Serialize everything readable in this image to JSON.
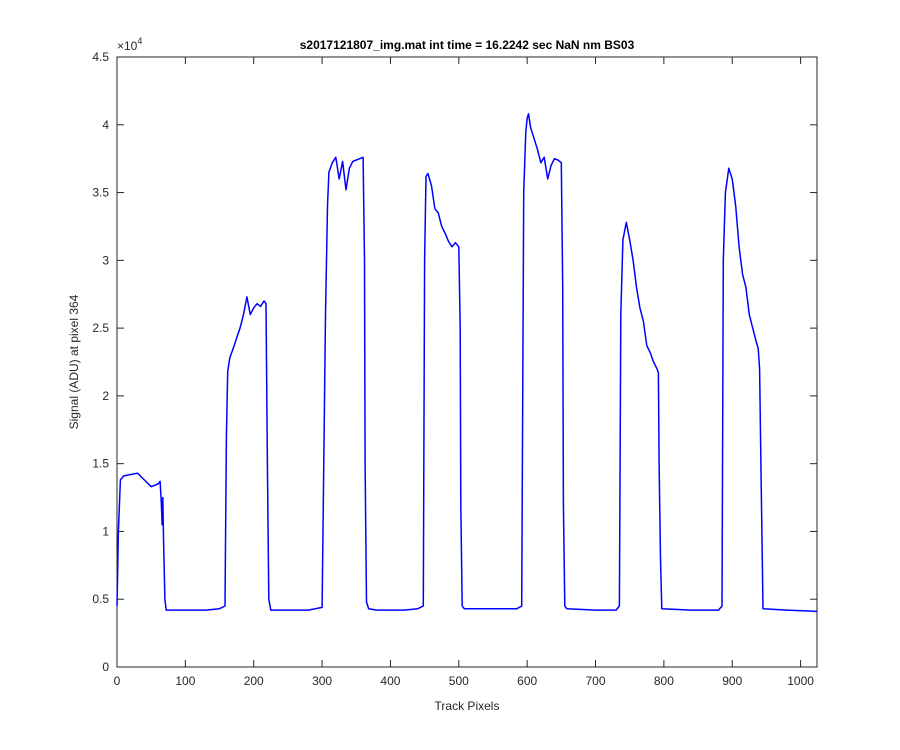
{
  "chart_data": {
    "type": "line",
    "title": "s2017121807_img.mat int time = 16.2242 sec  NaN nm BS03",
    "xlabel": "Track Pixels",
    "ylabel": "Signal (ADU) at pixel 364",
    "xlim": [
      0,
      1024
    ],
    "ylim": [
      0,
      45000
    ],
    "xticks": [
      0,
      100,
      200,
      300,
      400,
      500,
      600,
      700,
      800,
      900,
      1000
    ],
    "yticks": [
      0,
      0.5,
      1,
      1.5,
      2,
      2.5,
      3,
      3.5,
      4,
      4.5
    ],
    "y_exponent_label": "×10",
    "y_exponent_power": "4",
    "grid": false,
    "series": [
      {
        "color": "#0000ff",
        "x": [
          0,
          2,
          5,
          10,
          20,
          30,
          40,
          50,
          60,
          63,
          65,
          66,
          67,
          68,
          70,
          72,
          100,
          130,
          150,
          158,
          160,
          162,
          165,
          170,
          180,
          185,
          190,
          195,
          200,
          205,
          210,
          215,
          218,
          220,
          222,
          225,
          250,
          280,
          300,
          305,
          308,
          310,
          315,
          320,
          325,
          330,
          335,
          340,
          345,
          350,
          355,
          360,
          362,
          363,
          365,
          368,
          380,
          420,
          440,
          448,
          450,
          452,
          455,
          460,
          465,
          470,
          475,
          480,
          485,
          490,
          495,
          500,
          502,
          503,
          505,
          508,
          550,
          585,
          592,
          595,
          598,
          600,
          602,
          605,
          610,
          615,
          620,
          625,
          630,
          635,
          640,
          645,
          650,
          652,
          653,
          655,
          658,
          700,
          730,
          735,
          737,
          740,
          745,
          750,
          755,
          760,
          765,
          770,
          775,
          780,
          785,
          790,
          792,
          793,
          795,
          797,
          840,
          880,
          885,
          887,
          890,
          895,
          900,
          905,
          910,
          915,
          920,
          925,
          930,
          935,
          938,
          940,
          942,
          945,
          980,
          1024
        ],
        "y": [
          4500,
          10000,
          13800,
          14100,
          14200,
          14300,
          13800,
          13300,
          13500,
          13700,
          12000,
          10500,
          12500,
          9500,
          5000,
          4200,
          4200,
          4200,
          4300,
          4500,
          17000,
          21800,
          22800,
          23500,
          25000,
          26000,
          27300,
          26000,
          26500,
          26800,
          26600,
          27000,
          26800,
          15000,
          5000,
          4200,
          4200,
          4200,
          4400,
          26000,
          34000,
          36500,
          37200,
          37600,
          36000,
          37300,
          35200,
          36800,
          37300,
          37400,
          37500,
          37600,
          30000,
          15000,
          4800,
          4300,
          4200,
          4200,
          4300,
          4500,
          30000,
          36200,
          36400,
          35500,
          33800,
          33500,
          32500,
          32000,
          31400,
          31000,
          31300,
          31000,
          25000,
          12000,
          4500,
          4300,
          4300,
          4300,
          4500,
          35000,
          39500,
          40500,
          40800,
          39800,
          39000,
          38200,
          37200,
          37600,
          36000,
          37000,
          37500,
          37400,
          37200,
          28000,
          12000,
          4500,
          4300,
          4200,
          4200,
          4500,
          26000,
          31500,
          32800,
          31500,
          30000,
          28000,
          26500,
          25500,
          23700,
          23200,
          22500,
          22000,
          21700,
          15000,
          8000,
          4300,
          4200,
          4200,
          4500,
          30000,
          35000,
          36800,
          36000,
          34000,
          31000,
          29000,
          28000,
          26000,
          25000,
          24000,
          23500,
          22000,
          15000,
          4300,
          4200,
          4100
        ]
      }
    ]
  }
}
